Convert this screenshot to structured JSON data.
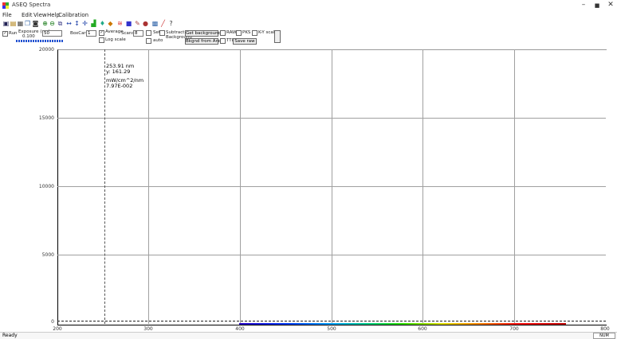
{
  "window": {
    "title": "ASEQ Spectra",
    "controls": {
      "minimize": "–",
      "maximize": "■",
      "close": "✕"
    }
  },
  "menu": [
    "File",
    "Edit",
    "View",
    "Help",
    "Calibration"
  ],
  "toolbar": {
    "icons": [
      "save-icon",
      "open-icon",
      "print-icon",
      "copy-icon",
      "camera-icon",
      "zoom-in-icon",
      "zoom-out-icon",
      "zoom-window-icon",
      "horizontal-arrows-icon",
      "vertical-arrows-icon",
      "crosshair-icon",
      "chart-icon",
      "tools-icon",
      "fit-icon",
      "filter-icon",
      "palette-icon",
      "settings-icon",
      "help-icon"
    ]
  },
  "controls": {
    "run_label": "Run",
    "exposure_label": "Exposure (ms)",
    "exposure_value": "0.100",
    "exposure_input": "50",
    "boxcar_label": "BoxCar",
    "boxcar_value": "1",
    "average_label": "Average",
    "average_checked": "✓",
    "scans_label": "Scans",
    "scans_value": "8",
    "log_scale_label": "Log scale",
    "set_label": "Set",
    "auto_label": "auto",
    "subtract_bkg_label": "Subtract",
    "background_label": "Background",
    "get_background_button": "Get background",
    "background_area_button": "Bkgnd from Area",
    "raw_label": "RAW",
    "peaks_label": "PKS",
    "ttl_label": "TTL",
    "ltop_label": "Lt/Top",
    "save_raw_button": "Save raw",
    "ky_scale_label": "K-Y scale"
  },
  "plot": {
    "y_ticks": [
      "20000",
      "15000",
      "10000",
      "5000",
      "0"
    ],
    "x_ticks": [
      "200",
      "300",
      "400",
      "500",
      "600",
      "700",
      "800"
    ]
  },
  "cursor_info": {
    "wavelength": "253.91 nm",
    "y_value": "y: 161.29",
    "unit": "mW/cm^2/nm",
    "value": "7.97E-002"
  },
  "status": {
    "text": "Ready",
    "right": "NUM"
  },
  "colors": {
    "plot_border": "#000000",
    "grid": "#a0a0a0",
    "background": "#ffffff"
  }
}
